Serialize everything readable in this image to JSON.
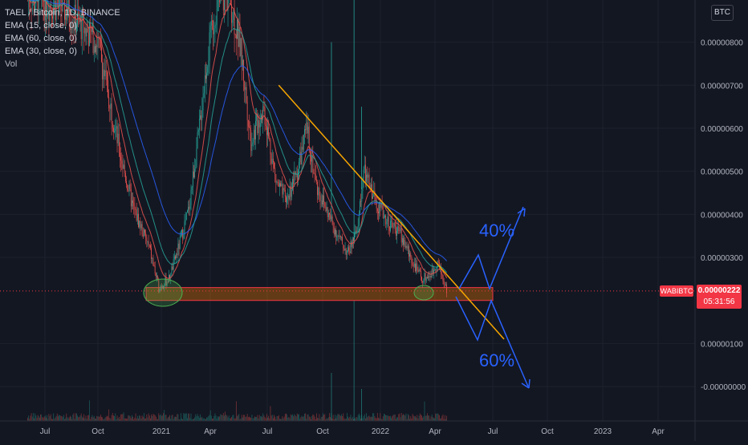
{
  "legend": {
    "title": "TAEL / Bitcoin, 1D, BINANCE",
    "ema1": "EMA (15, close, 0)",
    "ema2": "EMA (60, close, 0)",
    "ema3": "EMA (30, close, 0)",
    "vol": "Vol"
  },
  "currency_button": "BTC",
  "last_price": {
    "symbol": "WABIBTC",
    "price": "0.00000222",
    "countdown": "05:31:56"
  },
  "colors": {
    "background": "#131722",
    "grid": "#1e222d",
    "up": "#26a69a",
    "down": "#ef5350",
    "ema_fast": "#ef5350",
    "ema_mid": "#2962ff",
    "ema_slow": "#26a69a",
    "trendline": "#f7a600",
    "support_zone": "#f57c00",
    "projection": "#2962ff",
    "ellipse": "#4caf50",
    "price_tag": "#f23645"
  },
  "annotations": {
    "up_label": "40%",
    "down_label": "60%"
  },
  "chart_data": {
    "type": "candlestick",
    "title": "TAEL / Bitcoin, 1D, BINANCE",
    "x_ticks": [
      "Jul",
      "Oct",
      "2021",
      "Apr",
      "Jul",
      "Oct",
      "2022",
      "Apr",
      "Jul",
      "Oct",
      "2023",
      "Apr"
    ],
    "y_ticks": [
      "0.00000800",
      "0.00000700",
      "0.00000600",
      "0.00000500",
      "0.00000400",
      "0.00000300",
      "0.00000100",
      "-0.00000000"
    ],
    "y_tick_values": [
      8e-06,
      7e-06,
      6e-06,
      5e-06,
      4e-06,
      3e-06,
      1e-06,
      0.0
    ],
    "ylim": [
      -1.1e-07,
      8.98e-06
    ],
    "last_price": 2.22e-06,
    "indicators": [
      "EMA 15",
      "EMA 60",
      "EMA 30",
      "Volume"
    ],
    "approx_close_series": [
      {
        "date": "2020-06",
        "value": 9e-06
      },
      {
        "date": "2020-08",
        "value": 8.8e-06
      },
      {
        "date": "2020-10",
        "value": 8e-06
      },
      {
        "date": "2020-11-01",
        "value": 5.5e-06
      },
      {
        "date": "2020-11-20",
        "value": 4.2e-06
      },
      {
        "date": "2020-12-15",
        "value": 3.2e-06
      },
      {
        "date": "2020-12-28",
        "value": 2.3e-06
      },
      {
        "date": "2021-01-15",
        "value": 2.5e-06
      },
      {
        "date": "2021-02-01",
        "value": 3.2e-06
      },
      {
        "date": "2021-02-20",
        "value": 4.1e-06
      },
      {
        "date": "2021-03-10",
        "value": 5.8e-06
      },
      {
        "date": "2021-03-25",
        "value": 7.5e-06
      },
      {
        "date": "2021-04-10",
        "value": 8.8e-06
      },
      {
        "date": "2021-05-01",
        "value": 9.1e-06
      },
      {
        "date": "2021-05-20",
        "value": 7.8e-06
      },
      {
        "date": "2021-06-05",
        "value": 5.7e-06
      },
      {
        "date": "2021-06-25",
        "value": 6.5e-06
      },
      {
        "date": "2021-07-15",
        "value": 4.8e-06
      },
      {
        "date": "2021-08-01",
        "value": 4.3e-06
      },
      {
        "date": "2021-08-20",
        "value": 5e-06
      },
      {
        "date": "2021-09-05",
        "value": 6e-06
      },
      {
        "date": "2021-09-20",
        "value": 4.7e-06
      },
      {
        "date": "2021-10-10",
        "value": 4e-06
      },
      {
        "date": "2021-10-25",
        "value": 3.5e-06
      },
      {
        "date": "2021-11-10",
        "value": 3.1e-06
      },
      {
        "date": "2021-11-25",
        "value": 3.6e-06
      },
      {
        "date": "2021-12-05",
        "value": 5e-06
      },
      {
        "date": "2021-12-25",
        "value": 4.3e-06
      },
      {
        "date": "2022-01-15",
        "value": 3.8e-06
      },
      {
        "date": "2022-02-01",
        "value": 3.6e-06
      },
      {
        "date": "2022-02-20",
        "value": 3e-06
      },
      {
        "date": "2022-03-10",
        "value": 2.5e-06
      },
      {
        "date": "2022-03-25",
        "value": 2.6e-06
      },
      {
        "date": "2022-04-05",
        "value": 2.9e-06
      },
      {
        "date": "2022-04-20",
        "value": 2.2e-06
      }
    ],
    "support_zone": {
      "from": 2e-06,
      "to": 2.3e-06
    },
    "trendline": [
      {
        "date": "2021-07-20",
        "value": 7e-06
      },
      {
        "date": "2022-07-20",
        "value": 1.1e-06
      }
    ]
  }
}
